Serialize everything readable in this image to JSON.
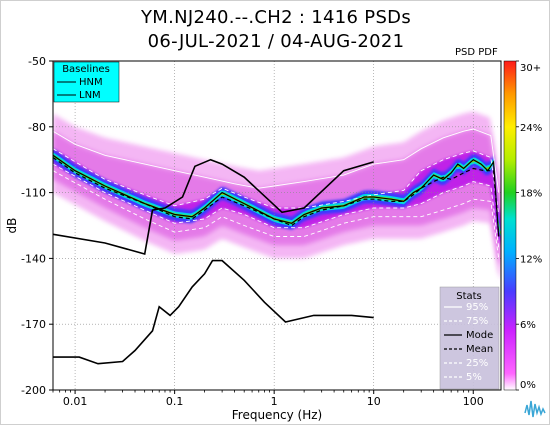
{
  "header": {
    "title_line1": "YM.NJ240.--.CH2 : 1416 PSDs",
    "title_line2": "06-JUL-2021 / 04-AUG-2021",
    "pdf_label": "PSD PDF"
  },
  "chart_data": {
    "type": "line",
    "xlabel": "Frequency (Hz)",
    "ylabel": "dB",
    "xscale": "log",
    "xlim": [
      0.006,
      190
    ],
    "ylim": [
      -200,
      -50
    ],
    "x_ticks": [
      0.01,
      0.1,
      1,
      10,
      100
    ],
    "x_tick_labels": [
      "0.01",
      "0.1",
      "1",
      "10",
      "100"
    ],
    "y_ticks": [
      -50,
      -80,
      -110,
      -140,
      -170,
      -200
    ],
    "y_tick_labels": [
      "-50",
      "-80",
      "-110",
      "-140",
      "-170",
      "-200"
    ],
    "grid": true,
    "baselines": {
      "title": "Baselines",
      "entries": [
        "HNM",
        "LNM"
      ],
      "legend_bg": "#00ffff"
    },
    "series": [
      {
        "name": "HNM",
        "color": "#000000",
        "style": "solid",
        "x": [
          0.006,
          0.02,
          0.05,
          0.06,
          0.08,
          0.12,
          0.16,
          0.23,
          0.3,
          0.5,
          1.2,
          2,
          5,
          10
        ],
        "y": [
          -129,
          -133,
          -138,
          -118,
          -117,
          -112,
          -98,
          -95,
          -97,
          -103,
          -119,
          -117,
          -100,
          -96
        ]
      },
      {
        "name": "LNM",
        "color": "#000000",
        "style": "solid",
        "x": [
          0.006,
          0.011,
          0.017,
          0.03,
          0.04,
          0.06,
          0.07,
          0.09,
          0.11,
          0.15,
          0.2,
          0.24,
          0.3,
          0.5,
          0.8,
          1.3,
          2.5,
          6,
          10
        ],
        "y": [
          -185,
          -185,
          -188,
          -187,
          -182,
          -173,
          -162,
          -166,
          -162,
          -153,
          -147,
          -141,
          -141,
          -150,
          -160,
          -169,
          -166,
          -166,
          -167
        ]
      },
      {
        "name": "Mode",
        "color": "#000000",
        "style": "solid",
        "x": [
          0.006,
          0.01,
          0.02,
          0.05,
          0.1,
          0.15,
          0.2,
          0.3,
          0.5,
          1,
          1.5,
          2,
          3,
          5,
          8,
          10,
          15,
          20,
          25,
          30,
          40,
          50,
          60,
          70,
          80,
          100,
          120,
          140,
          160,
          180
        ],
        "y": [
          -93,
          -100,
          -107,
          -115,
          -120,
          -121,
          -117,
          -110,
          -115,
          -122,
          -124,
          -120,
          -117,
          -116,
          -112,
          -112,
          -113,
          -114,
          -110,
          -108,
          -102,
          -104,
          -101,
          -97,
          -99,
          -95,
          -97,
          -100,
          -96,
          -130
        ]
      },
      {
        "name": "Mean",
        "color": "#000000",
        "style": "dashed",
        "x": [
          0.006,
          0.01,
          0.02,
          0.05,
          0.1,
          0.15,
          0.2,
          0.3,
          0.5,
          1,
          1.5,
          2,
          3,
          5,
          8,
          10,
          15,
          20,
          25,
          30,
          40,
          50,
          60,
          80,
          100,
          130,
          160,
          180
        ],
        "y": [
          -94,
          -101,
          -108,
          -115,
          -121,
          -122,
          -118,
          -112,
          -116,
          -122,
          -125,
          -121,
          -118,
          -116,
          -113,
          -113,
          -114,
          -114,
          -111,
          -108,
          -105,
          -103,
          -104,
          -101,
          -99,
          -100,
          -100,
          -130
        ]
      },
      {
        "name": "95%",
        "color": "#ffffff",
        "style": "solid",
        "x": [
          0.006,
          0.01,
          0.02,
          0.05,
          0.1,
          0.2,
          0.4,
          0.7,
          1,
          2,
          5,
          10,
          20,
          30,
          50,
          80,
          100,
          150,
          180
        ],
        "y": [
          -82,
          -88,
          -93,
          -97,
          -100,
          -103,
          -106,
          -108,
          -107,
          -105,
          -102,
          -97,
          -95,
          -90,
          -85,
          -82,
          -81,
          -84,
          -110
        ]
      },
      {
        "name": "75%",
        "color": "#ffffff",
        "style": "dashed",
        "x": [
          0.006,
          0.02,
          0.05,
          0.1,
          0.2,
          0.3,
          0.5,
          1,
          2,
          5,
          10,
          20,
          30,
          50,
          80,
          100,
          150,
          180
        ],
        "y": [
          -90,
          -104,
          -111,
          -116,
          -113,
          -108,
          -112,
          -117,
          -117,
          -114,
          -111,
          -109,
          -100,
          -95,
          -92,
          -91,
          -94,
          -120
        ]
      },
      {
        "name": "25%",
        "color": "#ffffff",
        "style": "dashed",
        "x": [
          0.006,
          0.02,
          0.05,
          0.1,
          0.2,
          0.3,
          0.5,
          1,
          2,
          5,
          10,
          20,
          30,
          50,
          80,
          100,
          150,
          180
        ],
        "y": [
          -97,
          -110,
          -118,
          -124,
          -122,
          -117,
          -120,
          -126,
          -126,
          -120,
          -117,
          -117,
          -115,
          -110,
          -107,
          -105,
          -107,
          -135
        ]
      },
      {
        "name": "5%",
        "color": "#ffffff",
        "style": "dashed",
        "x": [
          0.006,
          0.02,
          0.05,
          0.1,
          0.2,
          0.3,
          0.5,
          1,
          2,
          5,
          10,
          20,
          30,
          50,
          80,
          100,
          150,
          180
        ],
        "y": [
          -100,
          -113,
          -122,
          -128,
          -126,
          -121,
          -125,
          -130,
          -130,
          -124,
          -121,
          -121,
          -121,
          -118,
          -115,
          -113,
          -114,
          -140
        ]
      }
    ],
    "stats_legend": {
      "title": "Stats",
      "entries": [
        {
          "label": "95%",
          "color": "#ffffff",
          "style": "solid"
        },
        {
          "label": "75%",
          "color": "#ffffff",
          "style": "dashed"
        },
        {
          "label": "Mode",
          "color": "#000000",
          "style": "solid"
        },
        {
          "label": "Mean",
          "color": "#000000",
          "style": "dashed"
        },
        {
          "label": "25%",
          "color": "#ffffff",
          "style": "dashed"
        },
        {
          "label": "5%",
          "color": "#ffffff",
          "style": "dashed"
        }
      ]
    },
    "colorbar": {
      "ticks": [
        0,
        6,
        12,
        18,
        24,
        30
      ],
      "tick_labels": [
        "0%",
        "6%",
        "12%",
        "18%",
        "24%",
        "30+"
      ],
      "range": [
        0,
        30
      ]
    }
  }
}
